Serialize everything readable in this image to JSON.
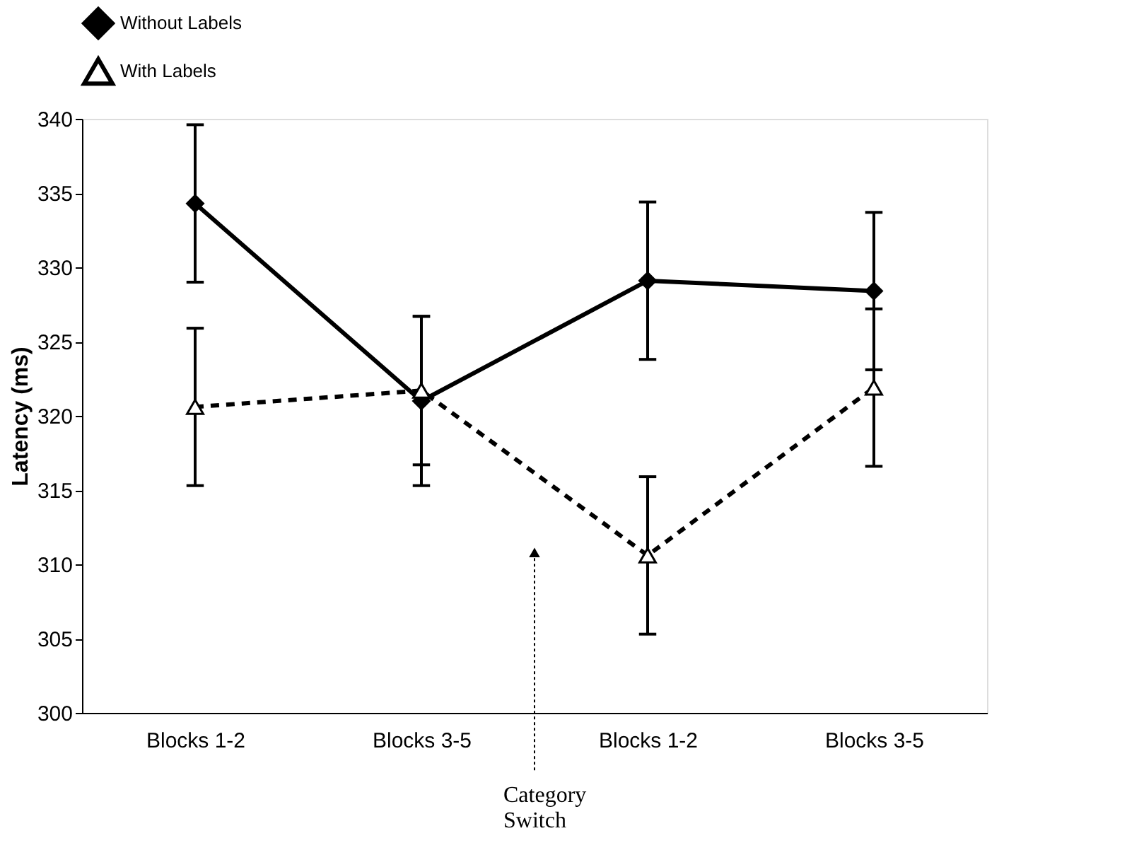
{
  "chart_data": {
    "type": "line",
    "ylabel": "Latency (ms)",
    "categories": [
      "Blocks 1-2",
      "Blocks 3-5",
      "Blocks 1-2",
      "Blocks 3-5"
    ],
    "series": [
      {
        "name": "Without Labels",
        "color": "#000000",
        "marker": "diamond",
        "line_style": "solid",
        "values": [
          334.3,
          321.0,
          329.1,
          328.4
        ],
        "errors": [
          5.3,
          5.7,
          5.3,
          5.3
        ]
      },
      {
        "name": "With Labels",
        "color": "#000000",
        "marker": "triangle",
        "line_style": "dashed",
        "values": [
          320.6,
          321.7,
          310.6,
          321.9
        ],
        "errors": [
          5.3,
          5.0,
          5.3,
          5.3
        ]
      }
    ],
    "ylim": [
      300,
      340
    ],
    "yticks": [
      300,
      305,
      310,
      315,
      320,
      325,
      330,
      335,
      340
    ],
    "grid": false,
    "legend": "top",
    "annotations": [
      "Category Switch"
    ]
  }
}
